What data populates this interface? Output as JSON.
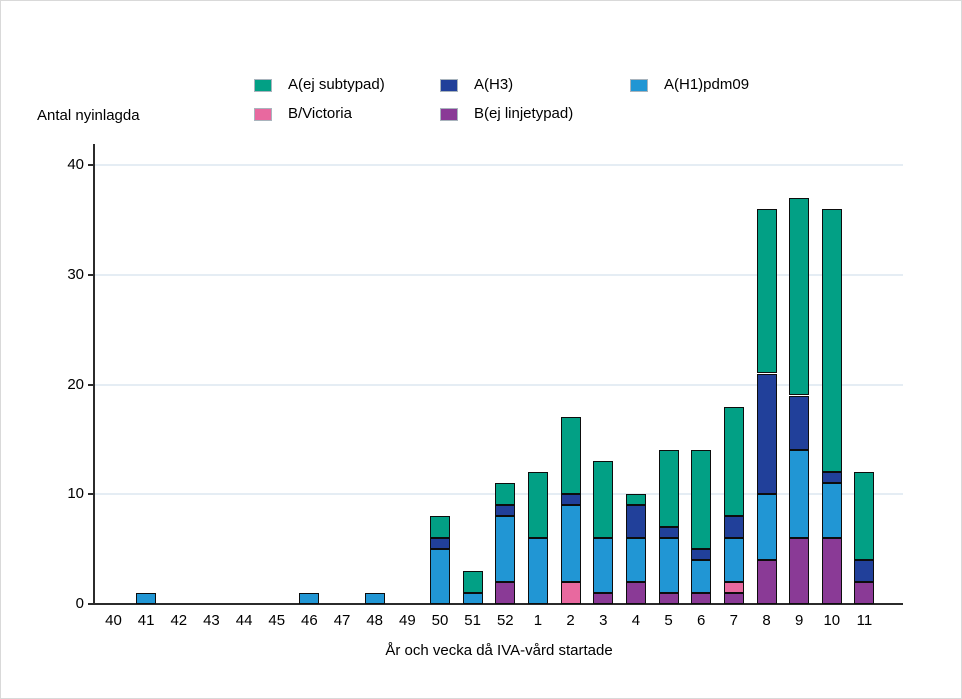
{
  "figure": {
    "background": "#ffffff"
  },
  "chart_data": {
    "type": "bar",
    "stacked": true,
    "title": "",
    "ylabel": "Antal nyinlagda",
    "xlabel": "År och vecka då IVA-vård startade",
    "ylim": [
      0,
      40
    ],
    "yticks": [
      0,
      10,
      20,
      30,
      40
    ],
    "grid": "horizontal",
    "legend_position": "top",
    "categories": [
      "40",
      "41",
      "42",
      "43",
      "44",
      "45",
      "46",
      "47",
      "48",
      "49",
      "50",
      "51",
      "52",
      "1",
      "2",
      "3",
      "4",
      "5",
      "6",
      "7",
      "8",
      "9",
      "10",
      "11"
    ],
    "series": [
      {
        "name": "A(ej subtypad)",
        "color": "#02a085",
        "values": [
          0,
          0,
          0,
          0,
          0,
          0,
          0,
          0,
          0,
          0,
          2,
          2,
          2,
          6,
          7,
          7,
          1,
          7,
          9,
          10,
          15,
          18,
          24,
          8
        ]
      },
      {
        "name": "A(H3)",
        "color": "#21409a",
        "values": [
          0,
          0,
          0,
          0,
          0,
          0,
          0,
          0,
          0,
          0,
          1,
          0,
          1,
          0,
          1,
          0,
          3,
          1,
          1,
          2,
          11,
          5,
          1,
          2
        ]
      },
      {
        "name": "A(H1)pdm09",
        "color": "#2196d4",
        "values": [
          0,
          1,
          0,
          0,
          0,
          0,
          1,
          0,
          1,
          0,
          5,
          1,
          6,
          6,
          7,
          5,
          4,
          5,
          3,
          4,
          6,
          8,
          5,
          0
        ]
      },
      {
        "name": "B/Victoria",
        "color": "#e8699f",
        "values": [
          0,
          0,
          0,
          0,
          0,
          0,
          0,
          0,
          0,
          0,
          0,
          0,
          0,
          0,
          2,
          0,
          0,
          0,
          0,
          1,
          0,
          0,
          0,
          0
        ]
      },
      {
        "name": "B(ej linjetypad)",
        "color": "#8a3a96",
        "values": [
          0,
          0,
          0,
          0,
          0,
          0,
          0,
          0,
          0,
          0,
          0,
          0,
          2,
          0,
          0,
          1,
          2,
          1,
          1,
          1,
          4,
          6,
          6,
          2
        ]
      }
    ],
    "stack_order_bottom_to_top": [
      "B(ej linjetypad)",
      "B/Victoria",
      "A(H1)pdm09",
      "A(H3)",
      "A(ej subtypad)"
    ],
    "legend_rows": [
      [
        "A(ej subtypad)",
        "A(H3)",
        "A(H1)pdm09"
      ],
      [
        "B/Victoria",
        "B(ej linjetypad)"
      ]
    ]
  },
  "colors": {
    "grid": "#e5edf4",
    "axis": "#2b2b2b",
    "segment_border": "#0d0d0d",
    "text": "#000000"
  }
}
